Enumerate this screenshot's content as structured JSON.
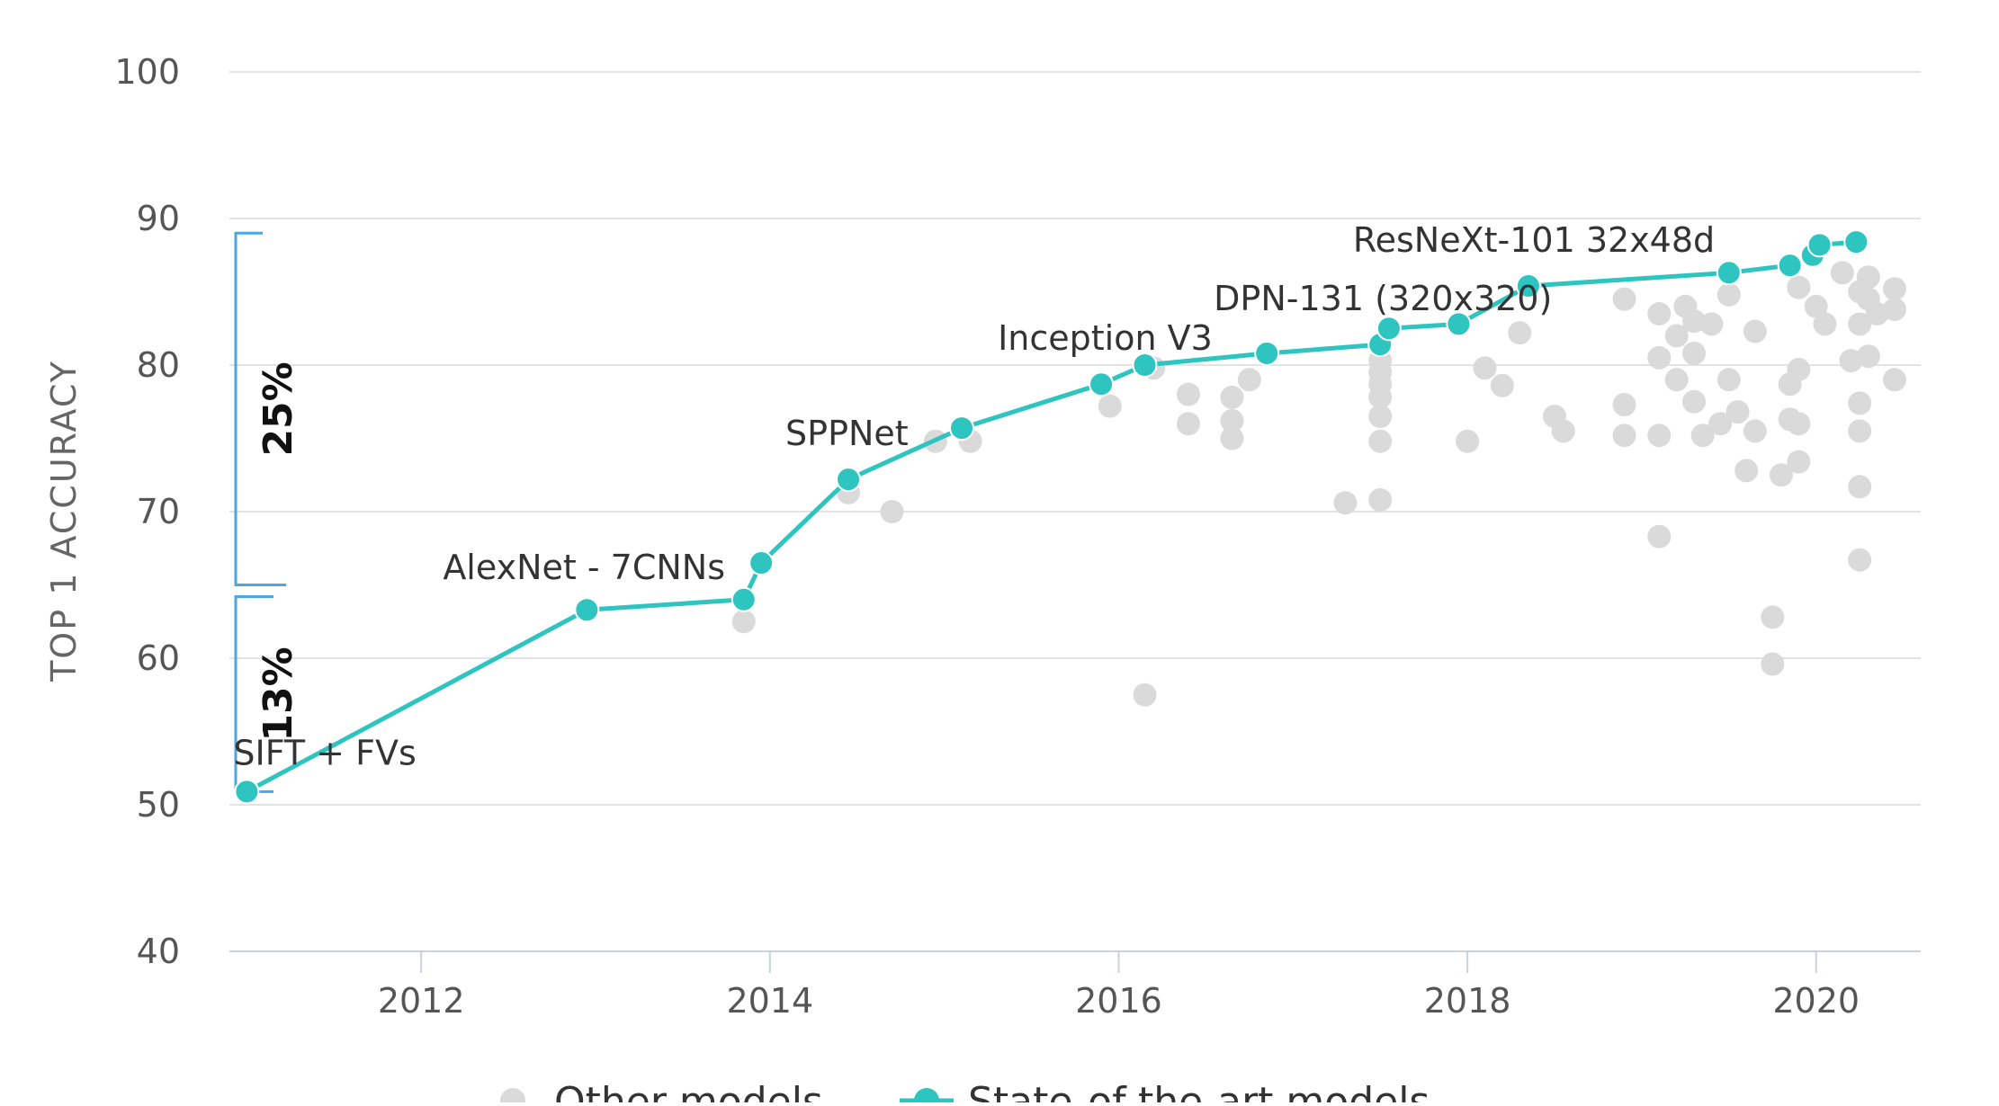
{
  "chart_data": {
    "type": "scatter",
    "xlabel": "",
    "ylabel": "TOP 1 ACCURACY",
    "xlim": [
      2010.9,
      2020.6
    ],
    "ylim": [
      40,
      100
    ],
    "x_ticks": [
      2012,
      2014,
      2016,
      2018,
      2020
    ],
    "y_ticks": [
      40,
      50,
      60,
      70,
      80,
      90,
      100
    ],
    "grid": true,
    "legend_position": "bottom",
    "colors": {
      "sota": "#2ec4c0",
      "other": "#dadada",
      "grid": "#e3e3e3",
      "bracket": "#4aa6e6"
    },
    "series": [
      {
        "name": "Other models",
        "style": "points",
        "x": [
          2013.85,
          2014.45,
          2014.7,
          2014.95,
          2015.15,
          2015.95,
          2016.15,
          2016.2,
          2016.4,
          2016.4,
          2016.65,
          2016.65,
          2016.65,
          2016.75,
          2017.3,
          2017.5,
          2017.5,
          2017.5,
          2017.5,
          2017.5,
          2017.5,
          2017.5,
          2018.0,
          2018.1,
          2018.2,
          2018.3,
          2018.5,
          2018.55,
          2018.9,
          2018.9,
          2018.9,
          2019.1,
          2019.1,
          2019.1,
          2019.1,
          2019.2,
          2019.2,
          2019.25,
          2019.3,
          2019.3,
          2019.3,
          2019.35,
          2019.4,
          2019.45,
          2019.5,
          2019.5,
          2019.55,
          2019.6,
          2019.65,
          2019.65,
          2019.75,
          2019.75,
          2019.8,
          2019.85,
          2019.85,
          2019.9,
          2019.9,
          2019.9,
          2019.9,
          2020.0,
          2020.05,
          2020.15,
          2020.2,
          2020.25,
          2020.25,
          2020.25,
          2020.25,
          2020.25,
          2020.25,
          2020.3,
          2020.3,
          2020.3,
          2020.35,
          2020.45,
          2020.45,
          2020.45
        ],
        "y": [
          62.5,
          71.3,
          70.0,
          74.8,
          74.8,
          77.2,
          57.5,
          79.8,
          78.0,
          76.0,
          77.8,
          76.2,
          75.0,
          79.0,
          70.6,
          80.3,
          79.5,
          78.7,
          77.8,
          76.5,
          74.8,
          70.8,
          74.8,
          79.8,
          78.6,
          82.2,
          76.5,
          75.5,
          84.5,
          75.2,
          77.3,
          68.3,
          83.5,
          80.5,
          75.2,
          82.0,
          79.0,
          84.0,
          83.0,
          80.8,
          77.5,
          75.2,
          82.8,
          76.0,
          84.8,
          79.0,
          76.8,
          72.8,
          82.3,
          75.5,
          62.8,
          59.6,
          72.5,
          78.7,
          76.3,
          85.3,
          79.7,
          76.0,
          73.4,
          84.0,
          82.8,
          86.3,
          80.3,
          77.4,
          75.5,
          71.7,
          66.7,
          82.8,
          85.0,
          84.5,
          80.6,
          86.0,
          83.5,
          85.2,
          83.8,
          79.0
        ]
      },
      {
        "name": "State-of-the-art models",
        "style": "line-markers",
        "x": [
          2011.0,
          2012.95,
          2013.85,
          2013.95,
          2014.45,
          2015.1,
          2015.9,
          2016.15,
          2016.85,
          2017.5,
          2017.55,
          2017.95,
          2018.35,
          2019.5,
          2019.85,
          2019.98,
          2020.02,
          2020.23
        ],
        "y": [
          50.9,
          63.3,
          64.0,
          66.5,
          72.2,
          75.7,
          78.7,
          80.0,
          80.8,
          81.4,
          82.5,
          82.8,
          85.4,
          86.3,
          86.8,
          87.5,
          88.2,
          88.4
        ]
      }
    ],
    "annotations": [
      {
        "text": "SIFT + FVs",
        "x": 2011.0,
        "y": 50.9
      },
      {
        "text": "AlexNet - 7CNNs",
        "x": 2012.95,
        "y": 63.3
      },
      {
        "text": "SPPNet",
        "x": 2014.45,
        "y": 72.2
      },
      {
        "text": "Inception V3",
        "x": 2015.9,
        "y": 78.7
      },
      {
        "text": "DPN-131 (320x320)",
        "x": 2017.5,
        "y": 81.4
      },
      {
        "text": "ResNeXt-101 32x48d",
        "x": 2018.35,
        "y": 85.4
      }
    ],
    "brackets": [
      {
        "label": "25%",
        "from": 65.0,
        "to": 89.0
      },
      {
        "label": "13%",
        "from": 50.9,
        "to": 64.2
      }
    ]
  }
}
